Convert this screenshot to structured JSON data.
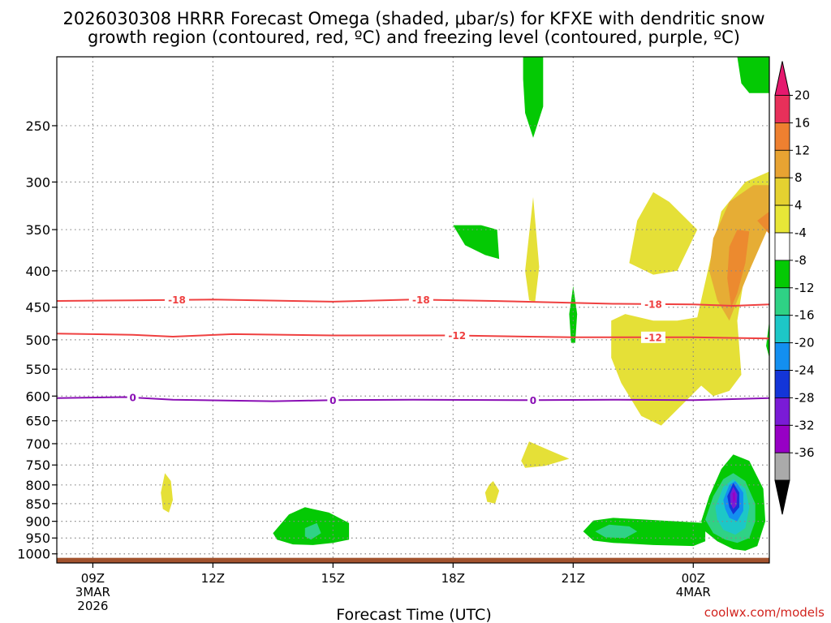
{
  "title": {
    "line1": "2026030308 HRRR Forecast Omega (shaded, μbar/s) for KFXE with dendritic snow",
    "line2": "growth region (contoured, red, ºC) and freezing level (contoured, purple, ºC)"
  },
  "credit": "coolwx.com/models",
  "colors": {
    "dendritic_contour": "#ef4040",
    "freezing_contour": "#8a0fb5",
    "ground": "#a2522d",
    "grid": "#888888"
  },
  "chart_data": {
    "type": "heatmap",
    "xlabel": "Forecast Time (UTC)",
    "ylabel": "",
    "x_ticks": [
      {
        "hour": 9,
        "label": "09Z",
        "sub1": "3MAR",
        "sub2": "2026"
      },
      {
        "hour": 12,
        "label": "12Z",
        "sub1": "",
        "sub2": ""
      },
      {
        "hour": 15,
        "label": "15Z",
        "sub1": "",
        "sub2": ""
      },
      {
        "hour": 18,
        "label": "18Z",
        "sub1": "",
        "sub2": ""
      },
      {
        "hour": 21,
        "label": "21Z",
        "sub1": "",
        "sub2": ""
      },
      {
        "hour": 24,
        "label": "00Z",
        "sub1": "4MAR",
        "sub2": ""
      }
    ],
    "xlim": [
      8.1,
      25.9
    ],
    "y_ticks": [
      250,
      300,
      350,
      400,
      450,
      500,
      550,
      600,
      650,
      700,
      750,
      800,
      850,
      900,
      950,
      1000
    ],
    "ylim_hpa": [
      200,
      1030
    ],
    "ground_hpa": 1013,
    "colorbar": {
      "labels": [
        "20",
        "16",
        "12",
        "8",
        "4",
        "-4",
        "-8",
        "-12",
        "-16",
        "-20",
        "-24",
        "-28",
        "-32",
        "-36"
      ],
      "colors": [
        "#e8305a",
        "#ee8030",
        "#e8a332",
        "#e5d130",
        "#e8e637",
        "#ffffff",
        "#04c904",
        "#2fd285",
        "#1dc7c7",
        "#138ff0",
        "#1335d8",
        "#7a1bd6",
        "#9700c5",
        "#aaaaaa"
      ],
      "top_color": "#e5196e",
      "bottom_color": "#000000"
    },
    "contours": [
      {
        "name": "dendritic",
        "value": -18,
        "color": "#ef4040",
        "points": [
          [
            8.1,
            441
          ],
          [
            10,
            440
          ],
          [
            12,
            439
          ],
          [
            15,
            442
          ],
          [
            17,
            439
          ],
          [
            19,
            441
          ],
          [
            22,
            445
          ],
          [
            24,
            446
          ],
          [
            25,
            448
          ],
          [
            25.9,
            446
          ]
        ],
        "labels": [
          {
            "hour": 11.1,
            "text": "-18"
          },
          {
            "hour": 17.2,
            "text": "-18"
          },
          {
            "hour": 23.0,
            "text": "-18"
          }
        ]
      },
      {
        "name": "dendritic",
        "value": -12,
        "color": "#ef4040",
        "points": [
          [
            8.1,
            490
          ],
          [
            10,
            492
          ],
          [
            11,
            495
          ],
          [
            12.5,
            491
          ],
          [
            15,
            493
          ],
          [
            18,
            493
          ],
          [
            21,
            496
          ],
          [
            24,
            496
          ],
          [
            25.9,
            498
          ]
        ],
        "labels": [
          {
            "hour": 18.1,
            "text": "-12"
          },
          {
            "hour": 23.0,
            "text": "-12"
          }
        ]
      },
      {
        "name": "freezing",
        "value": 0,
        "color": "#8a0fb5",
        "points": [
          [
            8.1,
            604
          ],
          [
            9.8,
            602
          ],
          [
            11,
            607
          ],
          [
            13.5,
            610
          ],
          [
            15,
            608
          ],
          [
            17,
            607
          ],
          [
            20,
            608
          ],
          [
            22,
            607
          ],
          [
            24,
            608
          ],
          [
            25.9,
            604
          ]
        ],
        "labels": [
          {
            "hour": 10.0,
            "text": "0"
          },
          {
            "hour": 15.0,
            "text": "0"
          },
          {
            "hour": 20.0,
            "text": "0"
          }
        ]
      }
    ],
    "shaded_regions": [
      {
        "value_range": "4 to 8",
        "color": "#e5e037",
        "polygon": [
          [
            24.1,
            465
          ],
          [
            24.7,
            330
          ],
          [
            25.3,
            300
          ],
          [
            25.9,
            290
          ],
          [
            25.9,
            340
          ],
          [
            25.3,
            400
          ],
          [
            25.1,
            470
          ],
          [
            25.2,
            560
          ],
          [
            24.9,
            590
          ],
          [
            24.5,
            600
          ],
          [
            24.2,
            580
          ],
          [
            23.2,
            660
          ],
          [
            22.7,
            640
          ],
          [
            22.2,
            575
          ],
          [
            21.95,
            530
          ],
          [
            21.95,
            470
          ],
          [
            22.3,
            460
          ],
          [
            23.0,
            470
          ],
          [
            23.6,
            470
          ]
        ]
      },
      {
        "value_range": "4 to 8",
        "color": "#e5e037",
        "polygon": [
          [
            22.4,
            390
          ],
          [
            22.6,
            340
          ],
          [
            23.0,
            310
          ],
          [
            23.4,
            320
          ],
          [
            24.1,
            350
          ],
          [
            23.6,
            400
          ],
          [
            23.0,
            405
          ]
        ]
      },
      {
        "value_range": "8 to 12",
        "color": "#e6ad35",
        "polygon": [
          [
            24.5,
            360
          ],
          [
            24.9,
            320
          ],
          [
            25.5,
            303
          ],
          [
            25.9,
            303
          ],
          [
            25.9,
            345
          ],
          [
            25.4,
            400
          ],
          [
            25.1,
            440
          ],
          [
            24.9,
            470
          ],
          [
            24.6,
            440
          ],
          [
            24.4,
            400
          ]
        ]
      },
      {
        "value_range": "12 to 16",
        "color": "#ec8a2f",
        "polygon": [
          [
            24.9,
            370
          ],
          [
            25.1,
            350
          ],
          [
            25.4,
            352
          ],
          [
            25.3,
            390
          ],
          [
            25.1,
            430
          ],
          [
            24.95,
            450
          ],
          [
            24.85,
            410
          ]
        ]
      },
      {
        "value_range": "12 to 16",
        "color": "#ec8a2f",
        "polygon": [
          [
            25.6,
            340
          ],
          [
            25.9,
            330
          ],
          [
            25.9,
            355
          ]
        ]
      },
      {
        "value_range": "4 to 8",
        "color": "#e5e037",
        "polygon": [
          [
            23.9,
            545
          ],
          [
            24.1,
            530
          ],
          [
            24.2,
            550
          ],
          [
            24.05,
            590
          ]
        ]
      },
      {
        "value_range": "4 to 8",
        "color": "#e5e037",
        "polygon": [
          [
            19.8,
            400
          ],
          [
            20.0,
            315
          ],
          [
            20.15,
            395
          ],
          [
            20.05,
            442
          ],
          [
            19.9,
            440
          ]
        ]
      },
      {
        "value_range": "4 to 8",
        "color": "#e5e037",
        "polygon": [
          [
            19.7,
            740
          ],
          [
            19.9,
            695
          ],
          [
            20.4,
            715
          ],
          [
            20.9,
            735
          ],
          [
            20.3,
            752
          ],
          [
            19.8,
            757
          ]
        ]
      },
      {
        "value_range": "4 to 8",
        "color": "#e5e037",
        "polygon": [
          [
            10.7,
            820
          ],
          [
            10.8,
            770
          ],
          [
            10.95,
            790
          ],
          [
            11.0,
            840
          ],
          [
            10.9,
            875
          ],
          [
            10.75,
            865
          ]
        ]
      },
      {
        "value_range": "4 to 8",
        "color": "#e5e037",
        "polygon": [
          [
            18.8,
            820
          ],
          [
            18.9,
            800
          ],
          [
            19.0,
            790
          ],
          [
            19.15,
            815
          ],
          [
            19.05,
            850
          ],
          [
            18.85,
            845
          ]
        ]
      },
      {
        "value_range": "-4 to -8",
        "color": "#04c904",
        "polygon": [
          [
            24.2,
            900
          ],
          [
            24.4,
            830
          ],
          [
            24.7,
            760
          ],
          [
            25.0,
            725
          ],
          [
            25.4,
            740
          ],
          [
            25.75,
            810
          ],
          [
            25.8,
            900
          ],
          [
            25.6,
            975
          ],
          [
            25.3,
            990
          ],
          [
            25.0,
            985
          ],
          [
            24.6,
            960
          ],
          [
            24.3,
            930
          ]
        ]
      },
      {
        "value_range": "-4 to -8",
        "color": "#04c904",
        "polygon": [
          [
            21.25,
            930
          ],
          [
            21.5,
            898
          ],
          [
            22.0,
            890
          ],
          [
            22.8,
            895
          ],
          [
            24.3,
            905
          ],
          [
            24.3,
            960
          ],
          [
            24.0,
            975
          ],
          [
            23.0,
            972
          ],
          [
            22.0,
            965
          ],
          [
            21.5,
            958
          ]
        ]
      },
      {
        "value_range": "-4 to -8",
        "color": "#04c904",
        "polygon": [
          [
            13.5,
            935
          ],
          [
            13.9,
            880
          ],
          [
            14.3,
            860
          ],
          [
            14.9,
            875
          ],
          [
            15.4,
            905
          ],
          [
            15.4,
            955
          ],
          [
            15.0,
            965
          ],
          [
            14.5,
            972
          ],
          [
            14.0,
            970
          ],
          [
            13.6,
            955
          ]
        ]
      },
      {
        "value_range": "-4 to -8",
        "color": "#04c904",
        "polygon": [
          [
            18.0,
            345
          ],
          [
            18.7,
            345
          ],
          [
            19.1,
            350
          ],
          [
            19.15,
            385
          ],
          [
            18.8,
            380
          ],
          [
            18.3,
            368
          ]
        ]
      },
      {
        "value_range": "-4 to -8",
        "color": "#04c904",
        "polygon": [
          [
            19.75,
            215
          ],
          [
            19.75,
            200
          ],
          [
            20.25,
            200
          ],
          [
            20.25,
            235
          ],
          [
            20.0,
            260
          ],
          [
            19.8,
            240
          ]
        ]
      },
      {
        "value_range": "-4 to -8",
        "color": "#04c904",
        "polygon": [
          [
            20.9,
            460
          ],
          [
            21.0,
            420
          ],
          [
            21.1,
            460
          ],
          [
            21.05,
            505
          ],
          [
            20.95,
            505
          ]
        ]
      },
      {
        "value_range": "-4 to -8",
        "color": "#04c904",
        "polygon": [
          [
            25.1,
            200
          ],
          [
            25.9,
            200
          ],
          [
            25.9,
            225
          ],
          [
            25.4,
            225
          ],
          [
            25.2,
            218
          ]
        ]
      },
      {
        "value_range": "-4 to -8",
        "color": "#04c904",
        "polygon": [
          [
            25.82,
            510
          ],
          [
            25.9,
            470
          ],
          [
            25.9,
            530
          ]
        ]
      },
      {
        "value_range": "-8 to -12",
        "color": "#2fd285",
        "polygon": [
          [
            24.3,
            895
          ],
          [
            24.5,
            830
          ],
          [
            24.75,
            785
          ],
          [
            25.0,
            770
          ],
          [
            25.3,
            790
          ],
          [
            25.55,
            850
          ],
          [
            25.55,
            900
          ],
          [
            25.4,
            950
          ],
          [
            25.1,
            965
          ],
          [
            24.8,
            955
          ],
          [
            24.5,
            935
          ]
        ]
      },
      {
        "value_range": "-8 to -12",
        "color": "#2fd285",
        "polygon": [
          [
            21.55,
            930
          ],
          [
            21.9,
            910
          ],
          [
            22.4,
            915
          ],
          [
            22.6,
            930
          ],
          [
            22.3,
            950
          ],
          [
            21.8,
            948
          ]
        ]
      },
      {
        "value_range": "-8 to -12",
        "color": "#2fd285",
        "polygon": [
          [
            14.3,
            920
          ],
          [
            14.6,
            905
          ],
          [
            14.7,
            935
          ],
          [
            14.45,
            955
          ],
          [
            14.3,
            945
          ]
        ]
      },
      {
        "value_range": "-12 to -16",
        "color": "#1dc7c7",
        "polygon": [
          [
            24.55,
            860
          ],
          [
            24.75,
            805
          ],
          [
            25.0,
            785
          ],
          [
            25.3,
            810
          ],
          [
            25.4,
            860
          ],
          [
            25.3,
            920
          ],
          [
            25.05,
            940
          ],
          [
            24.75,
            925
          ],
          [
            24.6,
            895
          ]
        ]
      },
      {
        "value_range": "-16 to -20",
        "color": "#138ff0",
        "polygon": [
          [
            24.75,
            840
          ],
          [
            24.9,
            800
          ],
          [
            25.05,
            790
          ],
          [
            25.25,
            820
          ],
          [
            25.25,
            870
          ],
          [
            25.1,
            900
          ],
          [
            24.9,
            890
          ],
          [
            24.8,
            865
          ]
        ]
      },
      {
        "value_range": "-20 to -24",
        "color": "#1335d8",
        "polygon": [
          [
            24.85,
            830
          ],
          [
            25.0,
            795
          ],
          [
            25.15,
            820
          ],
          [
            25.15,
            860
          ],
          [
            25.0,
            880
          ],
          [
            24.9,
            860
          ]
        ]
      },
      {
        "value_range": "-24 to -28",
        "color": "#7a1bd6",
        "polygon": [
          [
            24.92,
            825
          ],
          [
            25.0,
            805
          ],
          [
            25.1,
            825
          ],
          [
            25.08,
            855
          ],
          [
            25.0,
            865
          ],
          [
            24.93,
            850
          ]
        ]
      },
      {
        "value_range": "-28 to -32",
        "color": "#9700c5",
        "polygon": [
          [
            24.98,
            822
          ],
          [
            25.04,
            818
          ],
          [
            25.05,
            840
          ],
          [
            25.0,
            848
          ]
        ]
      }
    ]
  }
}
